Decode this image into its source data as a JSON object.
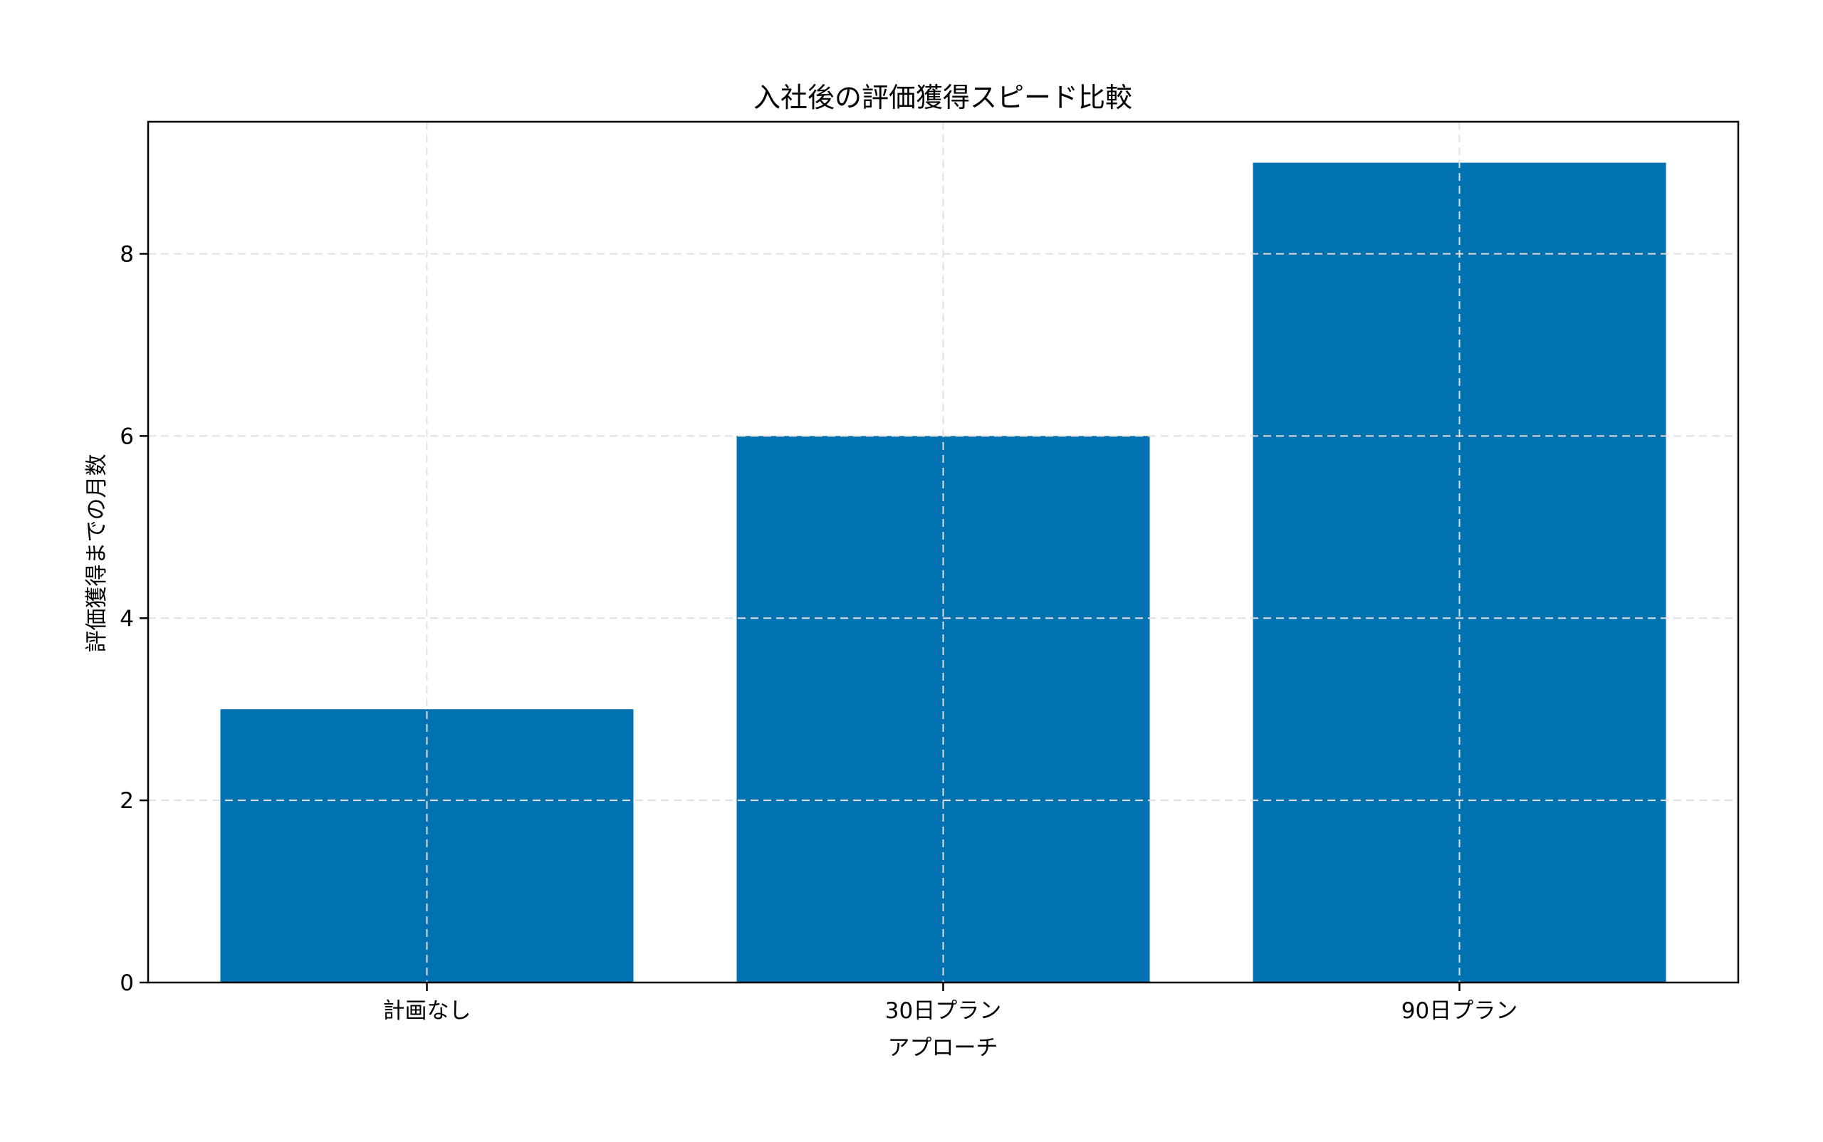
{
  "chart_data": {
    "type": "bar",
    "title": "入社後の評価獲得スピード比較",
    "xlabel": "アプローチ",
    "ylabel": "評価獲得までの月数",
    "categories": [
      "計画なし",
      "30日プラン",
      "90日プラン"
    ],
    "values": [
      3,
      6,
      9
    ],
    "ylim": [
      0,
      9.45
    ],
    "xlim": [
      -0.54,
      2.54
    ],
    "yticks": [
      0,
      2,
      4,
      6,
      8
    ],
    "ytick_labels": [
      "0",
      "2",
      "4",
      "6",
      "8"
    ],
    "bar_width": 0.8,
    "grid": true,
    "grid_style": "dashed",
    "legend": null,
    "colors": {
      "bar": "#0072B2",
      "grid": "#e0e0e0",
      "axis": "#000000"
    }
  }
}
